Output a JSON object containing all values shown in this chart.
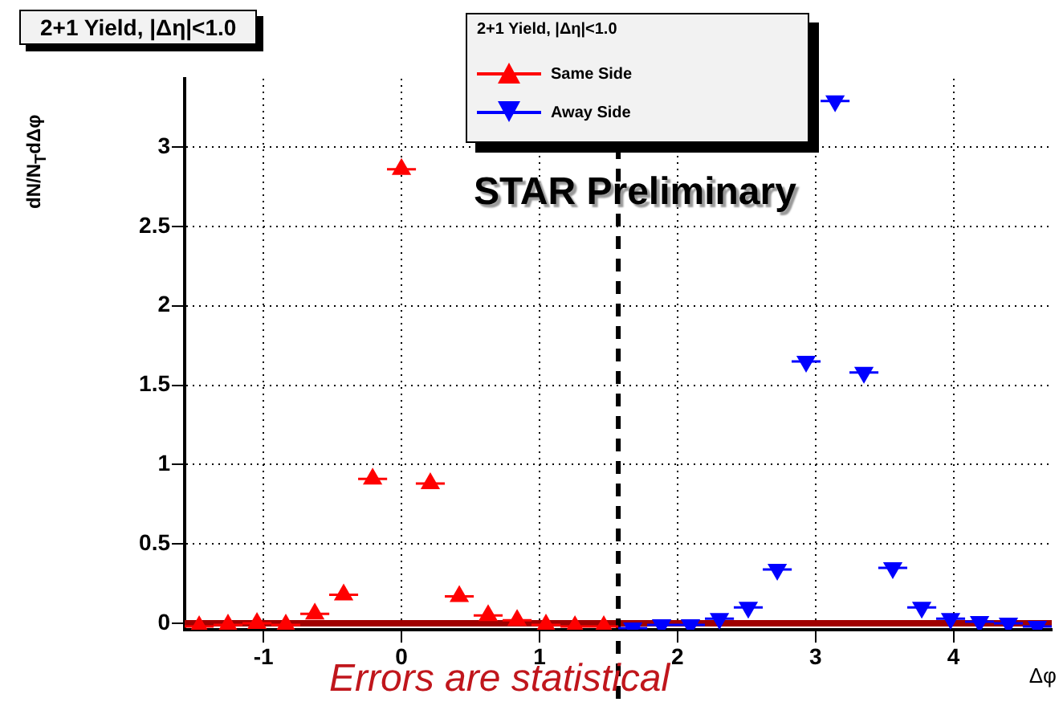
{
  "chart_data": {
    "type": "scatter",
    "title": "2+1 Yield, |Δη|<1.0",
    "legend_title": "2+1 Yield, |Δη|<1.0",
    "xlabel": "Δφ",
    "ylabel": "dN/N$_{T}$dΔφ",
    "annotations": [
      "STAR Preliminary",
      "Errors are statistical"
    ],
    "series": [
      {
        "name": "Same Side",
        "color": "#ff0000",
        "marker": "triangle",
        "x": [
          -1.466,
          -1.257,
          -1.047,
          -0.838,
          -0.628,
          -0.419,
          -0.209,
          0,
          0.209,
          0.419,
          0.628,
          0.838,
          1.047,
          1.257,
          1.466
        ],
        "values": [
          -0.02,
          -0.01,
          0,
          -0.01,
          0.06,
          0.18,
          0.91,
          2.86,
          0.88,
          0.17,
          0.05,
          0.02,
          -0.01,
          -0.02,
          -0.02
        ],
        "xerrors": [
          0.105,
          0.105,
          0.105,
          0.105,
          0.105,
          0.105,
          0.105,
          0.105,
          0.105,
          0.105,
          0.105,
          0.105,
          0.105,
          0.105,
          0.105
        ]
      },
      {
        "name": "Away Side",
        "color": "#0000ff",
        "marker": "triangle-down",
        "x": [
          1.676,
          1.885,
          2.094,
          2.304,
          2.513,
          2.723,
          2.932,
          3.142,
          3.351,
          3.56,
          3.77,
          3.979,
          4.189,
          4.398,
          4.607
        ],
        "values": [
          -0.03,
          -0.01,
          -0.01,
          0.03,
          0.1,
          0.34,
          1.65,
          3.29,
          1.58,
          0.35,
          0.1,
          0.03,
          0.01,
          0,
          -0.02
        ],
        "xerrors": [
          0.105,
          0.105,
          0.105,
          0.105,
          0.105,
          0.105,
          0.105,
          0.105,
          0.105,
          0.105,
          0.105,
          0.105,
          0.105,
          0.105,
          0.105
        ]
      }
    ],
    "xlim": [
      -1.571,
      4.712
    ],
    "xticks": [
      -1,
      0,
      1,
      2,
      3,
      4
    ],
    "ylim": [
      -0.04,
      3.43
    ],
    "yticks": [
      0,
      0.5,
      1,
      1.5,
      2,
      2.5,
      3
    ],
    "ref_lines": [
      {
        "axis": "y",
        "value": 0,
        "color": "#a00000",
        "line_style": "solid"
      },
      {
        "axis": "x",
        "value": 1.571,
        "color": "#000000",
        "line_style": "dashed"
      }
    ],
    "grid": true,
    "legend": "top"
  }
}
